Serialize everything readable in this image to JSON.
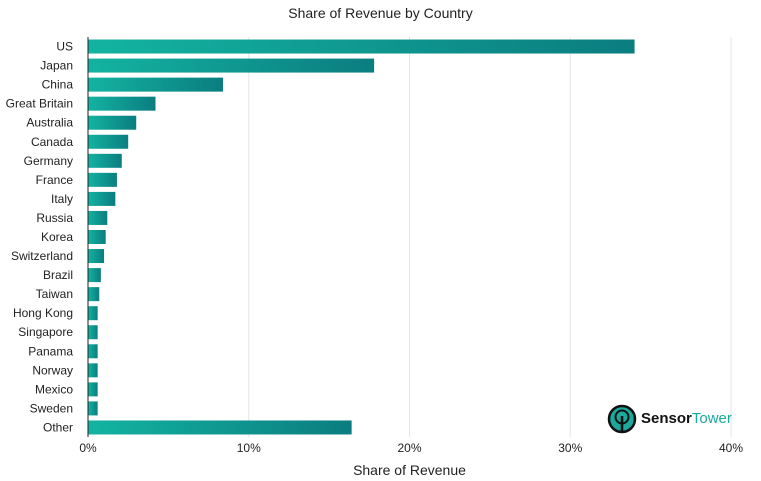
{
  "chart_data": {
    "type": "bar",
    "orientation": "horizontal",
    "title": "Share of Revenue by Country",
    "xlabel": "Share of Revenue",
    "ylabel": "",
    "xlim": [
      0,
      40
    ],
    "x_ticks": [
      "0%",
      "10%",
      "20%",
      "30%",
      "40%"
    ],
    "grid": true,
    "categories": [
      "US",
      "Japan",
      "China",
      "Great Britain",
      "Australia",
      "Canada",
      "Germany",
      "France",
      "Italy",
      "Russia",
      "Korea",
      "Switzerland",
      "Brazil",
      "Taiwan",
      "Hong Kong",
      "Singapore",
      "Panama",
      "Norway",
      "Mexico",
      "Sweden",
      "Other"
    ],
    "values": [
      34.0,
      17.8,
      8.4,
      4.2,
      3.0,
      2.5,
      2.1,
      1.8,
      1.7,
      1.2,
      1.1,
      1.0,
      0.8,
      0.7,
      0.6,
      0.6,
      0.6,
      0.6,
      0.6,
      0.6,
      16.4
    ],
    "colors": {
      "bar_start": "#13b3a1",
      "bar_end": "#0b7d80",
      "grid": "#e6e6e6",
      "axis": "#222222"
    }
  },
  "watermark": {
    "brand_first": "Sensor",
    "brand_second": "Tower",
    "icon": "sensor-tower-logo-icon"
  }
}
